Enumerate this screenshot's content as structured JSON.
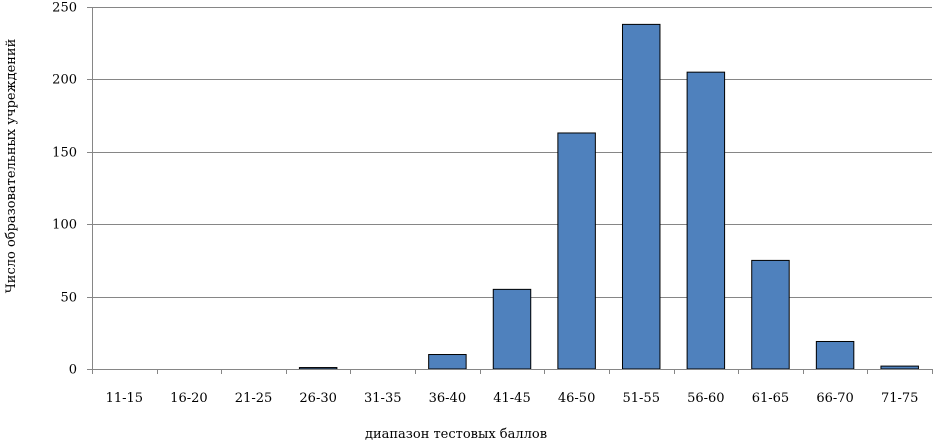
{
  "chart_data": {
    "type": "bar",
    "title": "",
    "xlabel": "диапазон тестовых баллов",
    "ylabel": "Число образовательных учреждений",
    "categories": [
      "11-15",
      "16-20",
      "21-25",
      "26-30",
      "31-35",
      "36-40",
      "41-45",
      "46-50",
      "51-55",
      "56-60",
      "61-65",
      "66-70",
      "71-75"
    ],
    "values": [
      0,
      0,
      0,
      1,
      0,
      10,
      55,
      163,
      238,
      205,
      75,
      19,
      2
    ],
    "ylim": [
      0,
      250
    ],
    "yticks": [
      0,
      50,
      100,
      150,
      200,
      250
    ],
    "grid": true,
    "legend": "none",
    "colors": {
      "bar_fill": "#4F81BD",
      "bar_stroke": "#000000",
      "grid": "#868686",
      "axis": "#868686"
    }
  }
}
